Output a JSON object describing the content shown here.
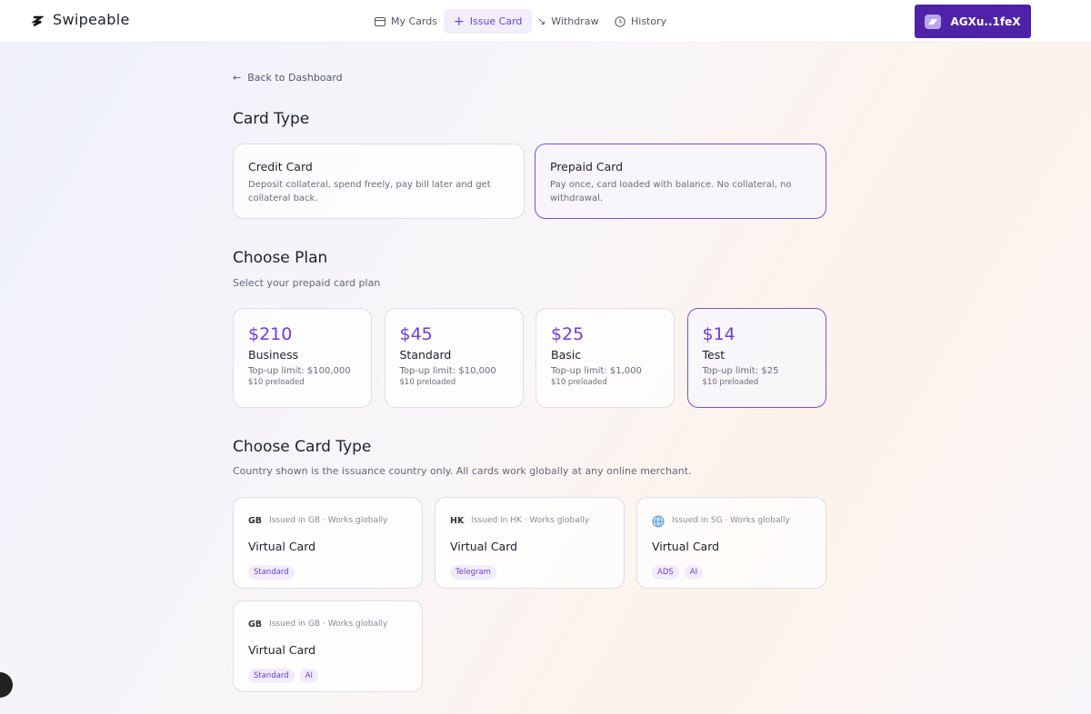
{
  "header": {
    "logo": "Swipeable",
    "nav": [
      "My Cards",
      "Issue Card",
      "Withdraw",
      "History"
    ],
    "wallet": "AGXu..1feX"
  },
  "back": "Back to Dashboard",
  "card_type": {
    "title": "Card Type",
    "options": [
      {
        "title": "Credit Card",
        "description": "Deposit collateral, spend freely, pay bill later and get collateral back."
      },
      {
        "title": "Prepaid Card",
        "description": "Pay once, card loaded with balance. No collateral, no withdrawal."
      }
    ]
  },
  "plan": {
    "title": "Choose Plan",
    "subtitle": "Select your prepaid card plan",
    "plans": [
      {
        "price": "$210",
        "name": "Business",
        "limit": "Top-up limit: $100,000",
        "preloaded": "$10 preloaded"
      },
      {
        "price": "$45",
        "name": "Standard",
        "limit": "Top-up limit: $10,000",
        "preloaded": "$10 preloaded"
      },
      {
        "price": "$25",
        "name": "Basic",
        "limit": "Top-up limit: $1,000",
        "preloaded": "$10 preloaded"
      },
      {
        "price": "$14",
        "name": "Test",
        "limit": "Top-up limit: $25",
        "preloaded": "$10 preloaded"
      }
    ]
  },
  "card_choice": {
    "title": "Choose Card Type",
    "subtitle": "Country shown is the issuance country only. All cards work globally at any online merchant.",
    "cards": [
      {
        "country": "GB",
        "issued": "Issued in GB · Works globally",
        "name": "Virtual Card",
        "tags": [
          "Standard"
        ]
      },
      {
        "country": "HK",
        "issued": "Issued in HK · Works globally",
        "name": "Virtual Card",
        "tags": [
          "Telegram"
        ]
      },
      {
        "issued": "Issued in SG · Works globally",
        "name": "Virtual Card",
        "tags": [
          "ADS",
          "AI"
        ]
      },
      {
        "country": "GB",
        "issued": "Issued in GB · Works globally",
        "name": "Virtual Card",
        "tags": [
          "Standard",
          "AI"
        ]
      }
    ]
  }
}
